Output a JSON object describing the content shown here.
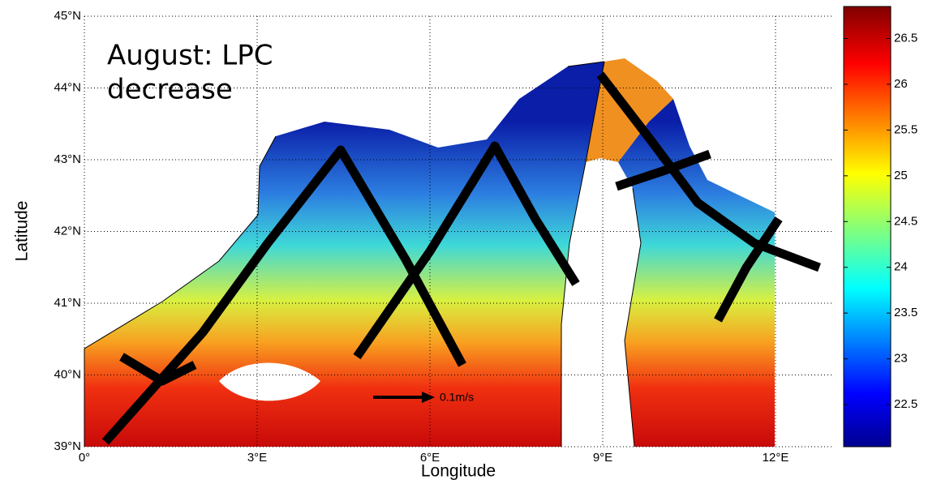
{
  "chart_data": {
    "type": "map",
    "annotation": [
      "August: LPC",
      "decrease"
    ],
    "x_label": "Longitude",
    "y_label": "Latitude",
    "scale_label": "0.1m/s",
    "xlim": [
      0,
      13
    ],
    "xticks": [
      {
        "value": 0,
        "label": "0°"
      },
      {
        "value": 3,
        "label": "3°E"
      },
      {
        "value": 6,
        "label": "6°E"
      },
      {
        "value": 9,
        "label": "9°E"
      },
      {
        "value": 12,
        "label": "12°E"
      }
    ],
    "ylim": [
      39,
      45
    ],
    "yticks": [
      {
        "value": 39,
        "label": "39°N"
      },
      {
        "value": 40,
        "label": "40°N"
      },
      {
        "value": 41,
        "label": "41°N"
      },
      {
        "value": 42,
        "label": "42°N"
      },
      {
        "value": 43,
        "label": "43°N"
      },
      {
        "value": 44,
        "label": "44°N"
      },
      {
        "value": 45,
        "label": "45°N"
      }
    ],
    "clim": [
      22.04,
      26.85
    ],
    "cticks": [
      22.5,
      23,
      23.5,
      24,
      24.5,
      25,
      25.5,
      26,
      26.5
    ],
    "grid": true
  }
}
